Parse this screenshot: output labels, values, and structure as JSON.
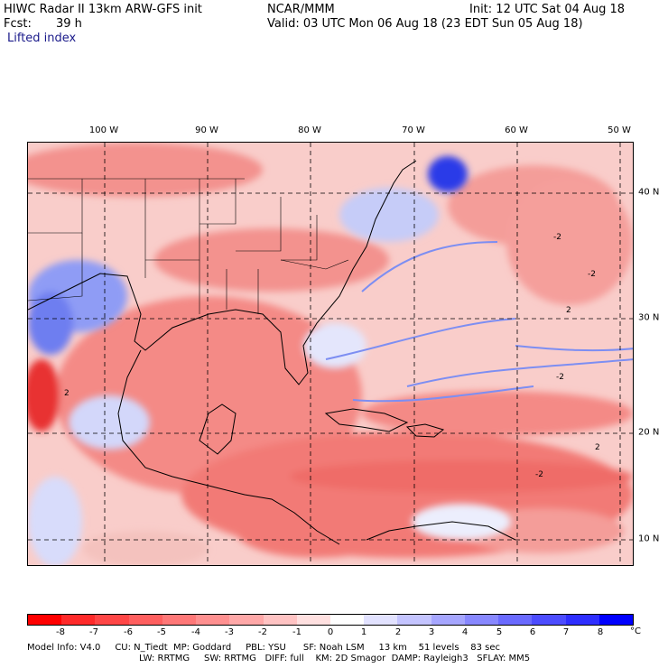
{
  "header": {
    "title": "HIWC Radar II 13km ARW-GFS init",
    "org": "NCAR/MMM",
    "init": "Init: 12 UTC Sat 04 Aug 18",
    "fcst_label": "Fcst:",
    "fcst_value": "39 h",
    "valid": "Valid: 03 UTC Mon 06 Aug 18 (23 EDT Sun 05 Aug 18)",
    "field": "Lifted index"
  },
  "map": {
    "lon_labels": [
      "100 W",
      "90 W",
      "80 W",
      "70 W",
      "60 W",
      "50 W"
    ],
    "lat_labels": [
      "40 N",
      "30 N",
      "20 N",
      "10 N"
    ],
    "contour_labels": [
      "-2",
      "-2",
      "2",
      "-2",
      "-2",
      "2",
      "2"
    ]
  },
  "colorbar": {
    "labels": [
      "-8",
      "-7",
      "-6",
      "-5",
      "-4",
      "-3",
      "-2",
      "-1",
      "0",
      "1",
      "2",
      "3",
      "4",
      "5",
      "6",
      "7",
      "8"
    ],
    "unit": "°C",
    "colors": [
      "#ff0000",
      "#ff2a2a",
      "#ff4646",
      "#ff5f5f",
      "#ff7878",
      "#ff9090",
      "#ffa8a8",
      "#ffc3c3",
      "#ffe0e0",
      "#ffffff",
      "#e2e2ff",
      "#c4c4ff",
      "#a6a6ff",
      "#8888ff",
      "#6a6aff",
      "#4c4cff",
      "#2e2eff",
      "#0000ff"
    ]
  },
  "model_info": {
    "line1": "Model Info: V4.0     CU: N_Tiedt  MP: Goddard     PBL: YSU      SF: Noah LSM     13 km    51 levels    83 sec",
    "line2": "LW: RRTMG     SW: RRTMG   DIFF: full    KM: 2D Smagor  DAMP: Rayleigh3   SFLAY: MM5"
  },
  "colors": {
    "stable": "#3a4cff",
    "unstable": "#ff2020",
    "neutral": "#fde2e0"
  }
}
